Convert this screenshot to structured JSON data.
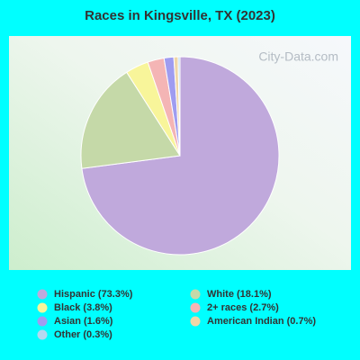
{
  "chart_data": {
    "type": "pie",
    "title": "Races in Kingsville, TX (2023)",
    "watermark": "City-Data.com",
    "categories": [
      "Hispanic (73.3%)",
      "White (18.1%)",
      "Black (3.8%)",
      "2+ races (2.7%)",
      "Asian (1.6%)",
      "American Indian (0.7%)",
      "Other (0.3%)"
    ],
    "values": [
      73.3,
      18.1,
      3.8,
      2.7,
      1.6,
      0.7,
      0.3
    ],
    "colors": [
      "#c0a9dc",
      "#c5d9a8",
      "#f8f59a",
      "#f4b5b5",
      "#9f9cf0",
      "#f0d6a8",
      "#b5d8f0"
    ]
  }
}
